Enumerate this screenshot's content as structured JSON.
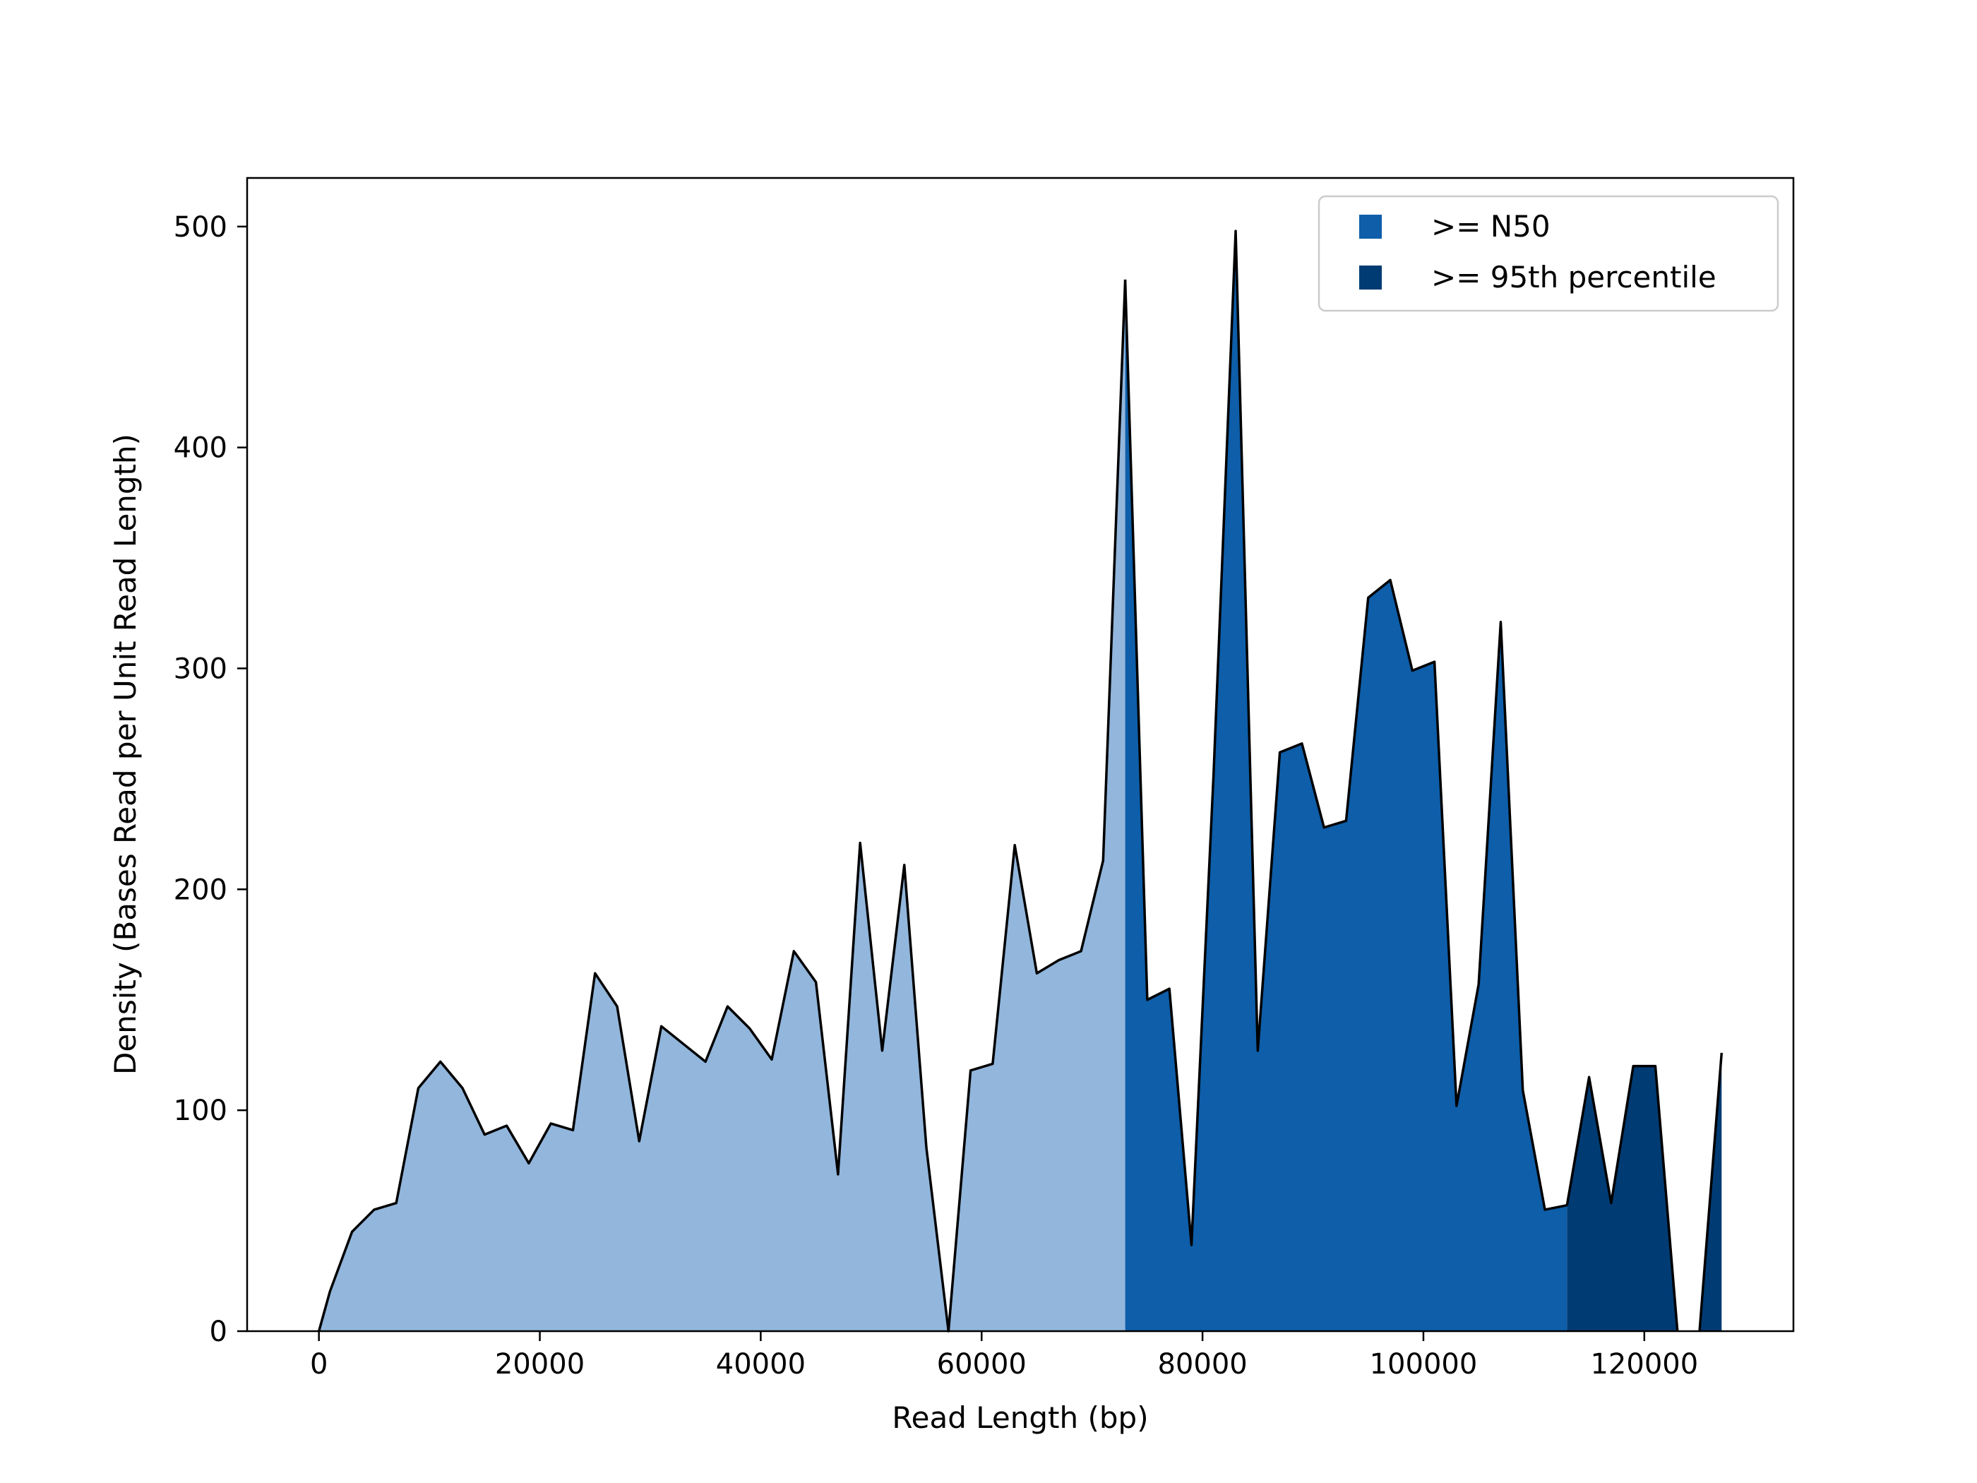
{
  "chart_data": {
    "type": "area",
    "title": "",
    "xlabel": "Read Length (bp)",
    "ylabel": "Density (Bases Read per Unit Read Length)",
    "xlim": [
      -6500,
      133500
    ],
    "ylim": [
      0,
      522
    ],
    "xticks": [
      0,
      20000,
      40000,
      60000,
      80000,
      100000,
      120000
    ],
    "yticks": [
      0,
      100,
      200,
      300,
      400,
      500
    ],
    "grid": false,
    "legend_position": "top-right",
    "colors": {
      "below_n50": "#92b6dc",
      "n50": "#0e5ea9",
      "p95": "#003b73",
      "outline": "#000000"
    },
    "n50_threshold": 73000,
    "p95_threshold": 113000,
    "legend": [
      {
        "label": ">= N50",
        "color": "#0e5ea9"
      },
      {
        "label": ">= 95th percentile",
        "color": "#003b73"
      }
    ],
    "segments": [
      {
        "region": "below_n50",
        "x": [
          0,
          1000,
          3000,
          5000,
          7000,
          9000,
          11000,
          13000,
          15000,
          17000,
          19000,
          21000,
          23000,
          25000,
          27000,
          29000,
          31000,
          33000,
          35000,
          37000,
          39000,
          41000,
          43000,
          45000,
          47000,
          49000,
          51000,
          53000,
          55000,
          57000,
          59000,
          61000,
          63000,
          65000,
          67000,
          69000,
          71000,
          73000
        ],
        "y": [
          0,
          18,
          45,
          55,
          58,
          110,
          122,
          110,
          89,
          93,
          76,
          94,
          91,
          162,
          147,
          86,
          138,
          130,
          122,
          147,
          137,
          123,
          172,
          158,
          71,
          221,
          127,
          211,
          83,
          0,
          118,
          121,
          220,
          162,
          168,
          172,
          213,
          476
        ]
      },
      {
        "region": "n50",
        "x": [
          73000,
          75000,
          77000,
          79000,
          81000,
          83000,
          85000,
          87000,
          89000,
          91000,
          93000,
          95000,
          97000,
          99000,
          101000,
          103000,
          105000,
          107000,
          109000,
          111000,
          113000
        ],
        "y": [
          476,
          150,
          155,
          39,
          252,
          498,
          127,
          262,
          266,
          228,
          231,
          332,
          340,
          299,
          303,
          102,
          157,
          321,
          109,
          55,
          57
        ]
      },
      {
        "region": "p95",
        "x": [
          113000,
          115000,
          117000,
          119000,
          121000,
          123000
        ],
        "y": [
          57,
          115,
          58,
          120,
          120,
          0
        ]
      },
      {
        "region": "p95",
        "x": [
          125000,
          127000
        ],
        "y": [
          0,
          126
        ]
      }
    ]
  }
}
